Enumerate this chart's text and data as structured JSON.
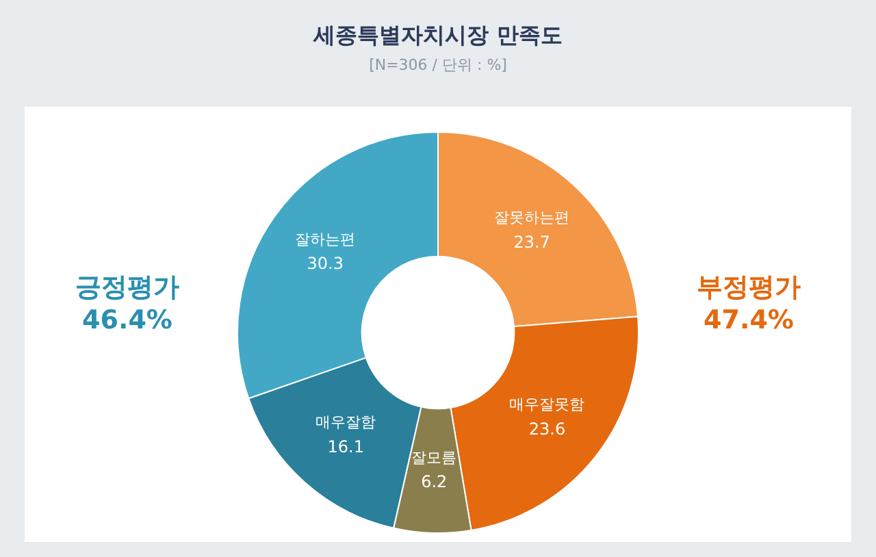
{
  "chart_data": {
    "type": "donut",
    "title": "세종특별자치시장 만족도",
    "subtitle": "[N=306 / 단위 : %]",
    "categories": [
      "잘못하는편",
      "매우잘못함",
      "잘모름",
      "매우잘함",
      "잘하는편"
    ],
    "values": [
      23.7,
      23.6,
      6.2,
      16.1,
      30.3
    ],
    "colors": [
      "#f39646",
      "#e4690f",
      "#8a7f4c",
      "#2a7f9b",
      "#42a8c6"
    ],
    "data_labels": true,
    "annotations": [
      "긍정평가 46.4%",
      "부정평가 47.4%"
    ]
  }
}
